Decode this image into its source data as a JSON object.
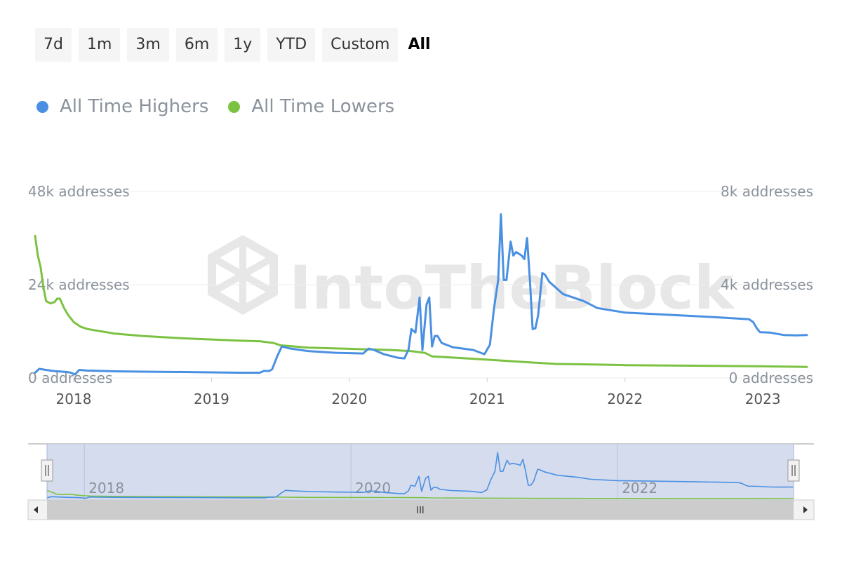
{
  "range_selector": {
    "buttons": [
      "7d",
      "1m",
      "3m",
      "6m",
      "1y",
      "YTD",
      "Custom",
      "All"
    ],
    "active": "All"
  },
  "legend": {
    "items": [
      {
        "label": "All Time Highers",
        "color": "#4a90e2"
      },
      {
        "label": "All Time Lowers",
        "color": "#7cc242"
      }
    ]
  },
  "watermark": "IntoTheBlock",
  "navigator": {
    "tick_labels": [
      "2018",
      "2020",
      "2022"
    ],
    "scroll_handle_label": "III"
  },
  "chart_data": {
    "type": "line",
    "x_type": "year",
    "xlim": [
      2017.72,
      2023.32
    ],
    "x_ticks": [
      2018,
      2019,
      2020,
      2021,
      2022,
      2023
    ],
    "x_tick_labels": [
      "2018",
      "2019",
      "2020",
      "2021",
      "2022",
      "2023"
    ],
    "y_left": {
      "min": 0,
      "max": 48000,
      "ticks": [
        0,
        24000,
        48000
      ],
      "labels": [
        "0 addresses",
        "24k addresses",
        "48k addresses"
      ]
    },
    "y_right": {
      "min": 0,
      "max": 8000,
      "ticks": [
        0,
        4000,
        8000
      ],
      "labels": [
        "0 addresses",
        "4k addresses",
        "8k addresses"
      ]
    },
    "grid": true,
    "legend_position": "top-left",
    "series": [
      {
        "name": "All Time Highers",
        "color": "#4a90e2",
        "axis": "right",
        "points": [
          [
            2017.72,
            225
          ],
          [
            2017.75,
            390
          ],
          [
            2017.8,
            345
          ],
          [
            2017.85,
            300
          ],
          [
            2017.95,
            255
          ],
          [
            2017.98,
            225
          ],
          [
            2018.01,
            150
          ],
          [
            2018.04,
            345
          ],
          [
            2018.1,
            315
          ],
          [
            2018.3,
            285
          ],
          [
            2018.5,
            270
          ],
          [
            2018.8,
            255
          ],
          [
            2019.0,
            240
          ],
          [
            2019.2,
            225
          ],
          [
            2019.35,
            225
          ],
          [
            2019.38,
            300
          ],
          [
            2019.42,
            300
          ],
          [
            2019.44,
            375
          ],
          [
            2019.48,
            975
          ],
          [
            2019.51,
            1350
          ],
          [
            2019.56,
            1275
          ],
          [
            2019.7,
            1155
          ],
          [
            2019.9,
            1080
          ],
          [
            2020.1,
            1050
          ],
          [
            2020.14,
            1260
          ],
          [
            2020.18,
            1200
          ],
          [
            2020.25,
            1020
          ],
          [
            2020.35,
            870
          ],
          [
            2020.4,
            840
          ],
          [
            2020.43,
            1230
          ],
          [
            2020.45,
            2100
          ],
          [
            2020.48,
            1950
          ],
          [
            2020.51,
            3450
          ],
          [
            2020.53,
            1200
          ],
          [
            2020.56,
            3150
          ],
          [
            2020.58,
            3450
          ],
          [
            2020.6,
            1350
          ],
          [
            2020.62,
            1800
          ],
          [
            2020.64,
            1800
          ],
          [
            2020.67,
            1500
          ],
          [
            2020.75,
            1320
          ],
          [
            2020.9,
            1200
          ],
          [
            2020.98,
            1020
          ],
          [
            2021.02,
            1425
          ],
          [
            2021.05,
            3000
          ],
          [
            2021.08,
            4200
          ],
          [
            2021.1,
            7020
          ],
          [
            2021.12,
            4200
          ],
          [
            2021.14,
            4200
          ],
          [
            2021.17,
            5850
          ],
          [
            2021.19,
            5250
          ],
          [
            2021.21,
            5400
          ],
          [
            2021.25,
            5250
          ],
          [
            2021.27,
            5100
          ],
          [
            2021.29,
            6000
          ],
          [
            2021.31,
            4200
          ],
          [
            2021.33,
            2100
          ],
          [
            2021.35,
            2130
          ],
          [
            2021.37,
            2700
          ],
          [
            2021.4,
            4500
          ],
          [
            2021.42,
            4425
          ],
          [
            2021.45,
            4125
          ],
          [
            2021.55,
            3600
          ],
          [
            2021.7,
            3300
          ],
          [
            2021.8,
            3000
          ],
          [
            2022.0,
            2805
          ],
          [
            2022.3,
            2715
          ],
          [
            2022.6,
            2625
          ],
          [
            2022.9,
            2520
          ],
          [
            2022.93,
            2400
          ],
          [
            2022.96,
            2100
          ],
          [
            2022.98,
            1965
          ],
          [
            2023.05,
            1950
          ],
          [
            2023.15,
            1845
          ],
          [
            2023.25,
            1830
          ],
          [
            2023.32,
            1845
          ]
        ]
      },
      {
        "name": "All Time Lowers",
        "color": "#7cc242",
        "axis": "left",
        "points": [
          [
            2017.72,
            36600
          ],
          [
            2017.74,
            31500
          ],
          [
            2017.76,
            28500
          ],
          [
            2017.78,
            23400
          ],
          [
            2017.8,
            19800
          ],
          [
            2017.83,
            19200
          ],
          [
            2017.86,
            19500
          ],
          [
            2017.88,
            20400
          ],
          [
            2017.9,
            20400
          ],
          [
            2017.93,
            18000
          ],
          [
            2017.96,
            16200
          ],
          [
            2018.0,
            14400
          ],
          [
            2018.05,
            13200
          ],
          [
            2018.1,
            12600
          ],
          [
            2018.2,
            12000
          ],
          [
            2018.3,
            11400
          ],
          [
            2018.5,
            10800
          ],
          [
            2018.8,
            10200
          ],
          [
            2019.0,
            9900
          ],
          [
            2019.2,
            9600
          ],
          [
            2019.35,
            9450
          ],
          [
            2019.45,
            9000
          ],
          [
            2019.5,
            8400
          ],
          [
            2019.7,
            7800
          ],
          [
            2020.0,
            7500
          ],
          [
            2020.3,
            7200
          ],
          [
            2020.45,
            6900
          ],
          [
            2020.55,
            6450
          ],
          [
            2020.6,
            5550
          ],
          [
            2020.9,
            4950
          ],
          [
            2021.1,
            4500
          ],
          [
            2021.3,
            4050
          ],
          [
            2021.5,
            3600
          ],
          [
            2021.8,
            3450
          ],
          [
            2022.0,
            3300
          ],
          [
            2022.5,
            3150
          ],
          [
            2023.0,
            3000
          ],
          [
            2023.32,
            2850
          ]
        ]
      }
    ]
  }
}
